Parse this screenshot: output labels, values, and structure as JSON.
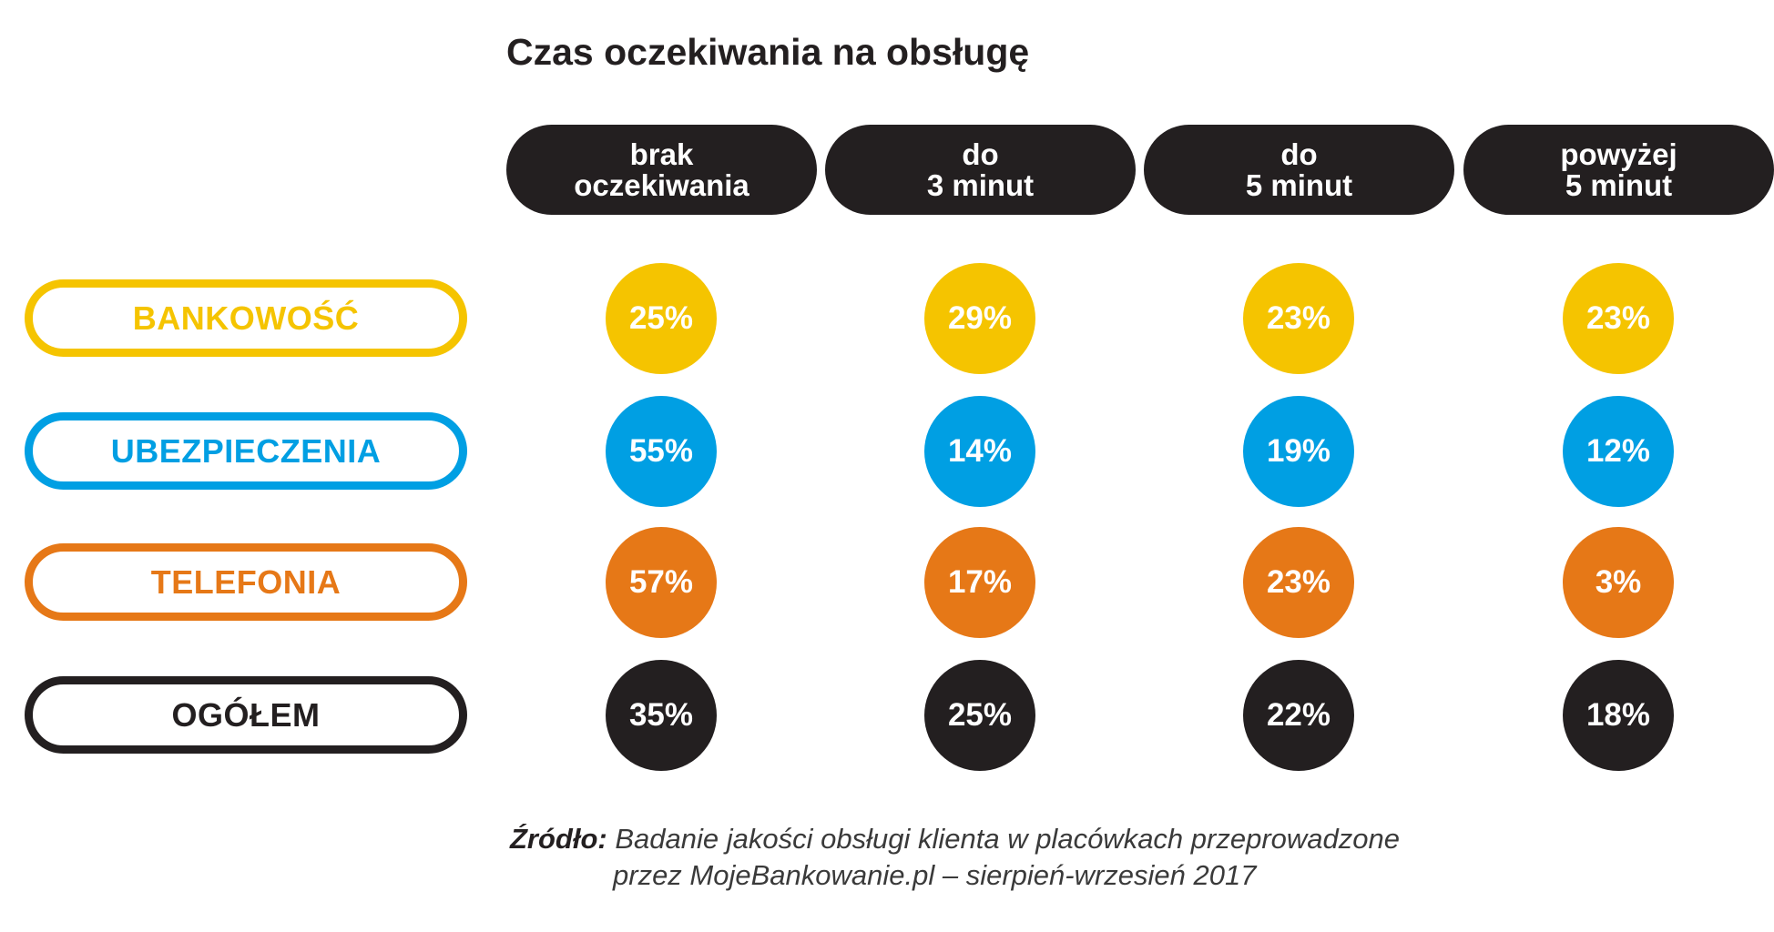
{
  "chart_data": {
    "type": "table",
    "title": "Czas oczekiwania na obsługę",
    "columns": [
      {
        "line1": "brak",
        "line2": "oczekiwania"
      },
      {
        "line1": "do",
        "line2": "3 minut"
      },
      {
        "line1": "do",
        "line2": "5 minut"
      },
      {
        "line1": "powyżej",
        "line2": "5 minut"
      }
    ],
    "rows": [
      {
        "label": "BANKOWOŚĆ",
        "color": "#f5c400",
        "values": [
          25,
          29,
          23,
          23
        ],
        "labels": [
          "25%",
          "29%",
          "23%",
          "23%"
        ]
      },
      {
        "label": "UBEZPIECZENIA",
        "color": "#009fe3",
        "values": [
          55,
          14,
          19,
          12
        ],
        "labels": [
          "55%",
          "14%",
          "19%",
          "12%"
        ]
      },
      {
        "label": "TELEFONIA",
        "color": "#e67817",
        "values": [
          57,
          17,
          23,
          3
        ],
        "labels": [
          "57%",
          "17%",
          "23%",
          "3%"
        ]
      },
      {
        "label": "OGÓŁEM",
        "color": "#231f20",
        "values": [
          35,
          25,
          22,
          18
        ],
        "labels": [
          "35%",
          "25%",
          "22%",
          "18%"
        ]
      }
    ],
    "unit": "%"
  },
  "source": {
    "prefix": "Źródło:",
    "line1": "Badanie jakości obsługi klienta w placówkach przeprowadzone",
    "line2": "przez MojeBankowanie.pl – sierpień-wrzesień 2017"
  }
}
